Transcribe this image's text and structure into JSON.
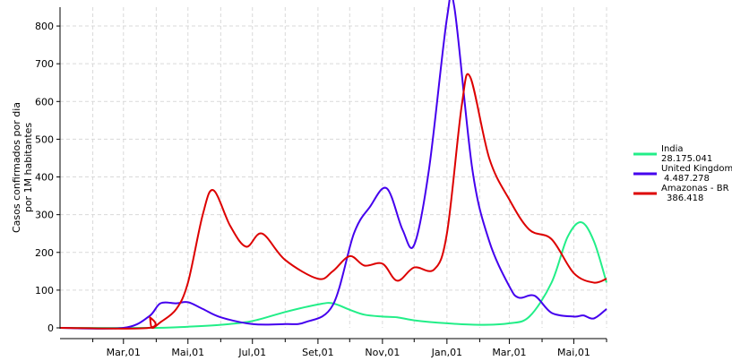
{
  "chart_data": {
    "type": "line",
    "title": "",
    "xlabel": "",
    "ylabel_lines": [
      "Casos confirmados por dia",
      "por 1M habitantes"
    ],
    "x_range": [
      "2020-01-01",
      "2021-06-01"
    ],
    "ylim": [
      0,
      850
    ],
    "yticks": [
      0,
      100,
      200,
      300,
      400,
      500,
      600,
      700,
      800
    ],
    "xticks": [
      {
        "date": "2020-03-01",
        "label": "Mar,01"
      },
      {
        "date": "2020-05-01",
        "label": "Mai,01"
      },
      {
        "date": "2020-07-01",
        "label": "Jul,01"
      },
      {
        "date": "2020-09-01",
        "label": "Set,01"
      },
      {
        "date": "2020-11-01",
        "label": "Nov,01"
      },
      {
        "date": "2021-01-01",
        "label": "Jan,01"
      },
      {
        "date": "2021-03-01",
        "label": "Mar,01"
      },
      {
        "date": "2021-05-01",
        "label": "Mai,01"
      }
    ],
    "minor_xticks": [
      "2020-02-01",
      "2020-04-01",
      "2020-06-01",
      "2020-08-01",
      "2020-10-01",
      "2020-12-01",
      "2021-02-01",
      "2021-04-01",
      "2021-06-01"
    ],
    "grid": true,
    "legend_position": "right",
    "series": [
      {
        "name": "India",
        "sublabel": "28.175.041",
        "color": "#22ee88",
        "points": [
          [
            "2020-01-01",
            0
          ],
          [
            "2020-04-01",
            0
          ],
          [
            "2020-05-01",
            3
          ],
          [
            "2020-06-01",
            8
          ],
          [
            "2020-07-01",
            18
          ],
          [
            "2020-08-01",
            42
          ],
          [
            "2020-09-01",
            62
          ],
          [
            "2020-09-15",
            65
          ],
          [
            "2020-10-01",
            48
          ],
          [
            "2020-10-15",
            35
          ],
          [
            "2020-11-01",
            30
          ],
          [
            "2020-11-15",
            28
          ],
          [
            "2020-12-01",
            20
          ],
          [
            "2021-01-01",
            12
          ],
          [
            "2021-02-01",
            8
          ],
          [
            "2021-03-01",
            12
          ],
          [
            "2021-03-20",
            30
          ],
          [
            "2021-04-10",
            120
          ],
          [
            "2021-04-25",
            240
          ],
          [
            "2021-05-08",
            280
          ],
          [
            "2021-05-20",
            230
          ],
          [
            "2021-06-01",
            120
          ]
        ]
      },
      {
        "name": "United Kingdom",
        "sublabel": "4.487.278",
        "color": "#4400ee",
        "points": [
          [
            "2020-01-01",
            0
          ],
          [
            "2020-03-01",
            0
          ],
          [
            "2020-03-25",
            30
          ],
          [
            "2020-04-05",
            65
          ],
          [
            "2020-04-20",
            65
          ],
          [
            "2020-05-01",
            68
          ],
          [
            "2020-05-15",
            50
          ],
          [
            "2020-06-01",
            28
          ],
          [
            "2020-07-01",
            10
          ],
          [
            "2020-08-01",
            10
          ],
          [
            "2020-08-20",
            15
          ],
          [
            "2020-09-15",
            60
          ],
          [
            "2020-10-05",
            250
          ],
          [
            "2020-10-20",
            320
          ],
          [
            "2020-11-05",
            370
          ],
          [
            "2020-11-20",
            260
          ],
          [
            "2020-12-01",
            220
          ],
          [
            "2020-12-15",
            420
          ],
          [
            "2021-01-01",
            820
          ],
          [
            "2021-01-08",
            850
          ],
          [
            "2021-01-25",
            420
          ],
          [
            "2021-02-10",
            230
          ],
          [
            "2021-03-01",
            110
          ],
          [
            "2021-03-10",
            80
          ],
          [
            "2021-03-25",
            85
          ],
          [
            "2021-04-10",
            40
          ],
          [
            "2021-05-01",
            30
          ],
          [
            "2021-05-10",
            33
          ],
          [
            "2021-05-20",
            25
          ],
          [
            "2021-06-01",
            50
          ]
        ]
      },
      {
        "name": "Amazonas - BR",
        "sublabel": "386.418",
        "color": "#dd0000",
        "points": [
          [
            "2020-01-01",
            0
          ],
          [
            "2020-03-25",
            0
          ],
          [
            "2020-03-26",
            28
          ],
          [
            "2020-03-28",
            0
          ],
          [
            "2020-04-05",
            15
          ],
          [
            "2020-04-20",
            50
          ],
          [
            "2020-05-01",
            120
          ],
          [
            "2020-05-15",
            300
          ],
          [
            "2020-05-25",
            365
          ],
          [
            "2020-06-10",
            270
          ],
          [
            "2020-06-25",
            215
          ],
          [
            "2020-07-10",
            250
          ],
          [
            "2020-08-01",
            180
          ],
          [
            "2020-09-01",
            130
          ],
          [
            "2020-09-15",
            150
          ],
          [
            "2020-10-01",
            190
          ],
          [
            "2020-10-15",
            165
          ],
          [
            "2020-11-01",
            170
          ],
          [
            "2020-11-15",
            125
          ],
          [
            "2020-12-01",
            160
          ],
          [
            "2020-12-20",
            155
          ],
          [
            "2021-01-01",
            250
          ],
          [
            "2021-01-15",
            590
          ],
          [
            "2021-01-23",
            665
          ],
          [
            "2021-02-10",
            450
          ],
          [
            "2021-03-01",
            340
          ],
          [
            "2021-03-20",
            260
          ],
          [
            "2021-04-10",
            235
          ],
          [
            "2021-05-01",
            145
          ],
          [
            "2021-05-20",
            120
          ],
          [
            "2021-06-01",
            130
          ]
        ]
      }
    ]
  }
}
